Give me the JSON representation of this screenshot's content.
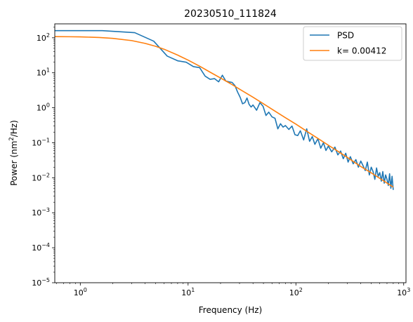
{
  "chart_data": {
    "type": "line",
    "title": "20230510_111824",
    "xlabel": "Frequency (Hz)",
    "ylabel": {
      "prefix": "Power (nm",
      "sup": "2",
      "suffix": "/Hz)"
    },
    "x_scale": "log",
    "y_scale": "log",
    "xlim": [
      0.58,
      1050
    ],
    "ylim": [
      1e-05,
      250
    ],
    "x_ticks": [
      {
        "value": 1,
        "base": "10",
        "exp": "0"
      },
      {
        "value": 10,
        "base": "10",
        "exp": "1"
      },
      {
        "value": 100,
        "base": "10",
        "exp": "2"
      },
      {
        "value": 1000,
        "base": "10",
        "exp": "3"
      }
    ],
    "y_ticks": [
      {
        "value": 1e-05,
        "base": "10",
        "exp": "−5"
      },
      {
        "value": 0.0001,
        "base": "10",
        "exp": "−4"
      },
      {
        "value": 0.001,
        "base": "10",
        "exp": "−3"
      },
      {
        "value": 0.01,
        "base": "10",
        "exp": "−2"
      },
      {
        "value": 0.1,
        "base": "10",
        "exp": "−1"
      },
      {
        "value": 1,
        "base": "10",
        "exp": "0"
      },
      {
        "value": 10,
        "base": "10",
        "exp": "1"
      },
      {
        "value": 100,
        "base": "10",
        "exp": "2"
      }
    ],
    "legend": {
      "position": "top-right"
    },
    "series": [
      {
        "name": "PSD",
        "color": "#1f77b4",
        "x": [
          0.58,
          1.6,
          3.2,
          4.8,
          6.4,
          8.0,
          9.6,
          11.2,
          12.8,
          14.4,
          16.0,
          17.6,
          19.2,
          20.8,
          22.4,
          24.0,
          25.6,
          27.2,
          28.8,
          30.4,
          32.0,
          33.6,
          35.2,
          36.8,
          38.4,
          40.0,
          43.2,
          46.4,
          49.6,
          52.8,
          56.0,
          60.0,
          64.0,
          68.0,
          72.0,
          76.0,
          80.0,
          86.0,
          92.0,
          98.0,
          104.0,
          110.0,
          118.0,
          126.0,
          134.0,
          142.0,
          150.0,
          160.0,
          170.0,
          180.0,
          190.0,
          200.0,
          215.0,
          230.0,
          245.0,
          260.0,
          275.0,
          290.0,
          305.0,
          320.0,
          340.0,
          360.0,
          380.0,
          400.0,
          420.0,
          440.0,
          460.0,
          480.0,
          500.0,
          520.0,
          540.0,
          560.0,
          580.0,
          600.0,
          620.0,
          640.0,
          660.0,
          680.0,
          700.0,
          720.0,
          740.0,
          760.0,
          780.0,
          800.0
        ],
        "y": [
          160,
          160,
          140,
          80,
          30,
          22,
          20,
          15,
          14,
          8,
          6.5,
          6.8,
          5.5,
          8.5,
          5.8,
          5.5,
          5.3,
          4.3,
          2.8,
          2.0,
          1.3,
          1.4,
          1.9,
          1.25,
          1.05,
          1.2,
          0.85,
          1.4,
          1.1,
          0.6,
          0.75,
          0.55,
          0.5,
          0.25,
          0.35,
          0.28,
          0.31,
          0.24,
          0.3,
          0.17,
          0.16,
          0.22,
          0.12,
          0.25,
          0.11,
          0.15,
          0.09,
          0.13,
          0.07,
          0.1,
          0.06,
          0.08,
          0.055,
          0.075,
          0.045,
          0.058,
          0.035,
          0.05,
          0.028,
          0.04,
          0.025,
          0.033,
          0.02,
          0.03,
          0.022,
          0.016,
          0.028,
          0.012,
          0.02,
          0.015,
          0.009,
          0.019,
          0.011,
          0.014,
          0.008,
          0.015,
          0.007,
          0.012,
          0.009,
          0.006,
          0.013,
          0.005,
          0.011,
          0.0045
        ]
      },
      {
        "name": "k= 0.00412",
        "color": "#ff7f0e",
        "x": [
          0.58,
          0.8,
          1.0,
          1.5,
          2.0,
          3.0,
          4.0,
          5.0,
          6.0,
          8.0,
          10.0,
          13.0,
          16.0,
          20.0,
          25.0,
          30.0,
          40.0,
          50.0,
          60.0,
          80.0,
          100.0,
          130.0,
          160.0,
          200.0,
          250.0,
          300.0,
          400.0,
          500.0,
          600.0,
          800.0
        ],
        "y": [
          108,
          107,
          106,
          102,
          96,
          83,
          69,
          57,
          47,
          32,
          23,
          15,
          10.4,
          7.1,
          4.8,
          3.4,
          2.0,
          1.3,
          0.91,
          0.52,
          0.34,
          0.2,
          0.133,
          0.085,
          0.055,
          0.038,
          0.021,
          0.0138,
          0.0096,
          0.0054
        ]
      }
    ]
  }
}
